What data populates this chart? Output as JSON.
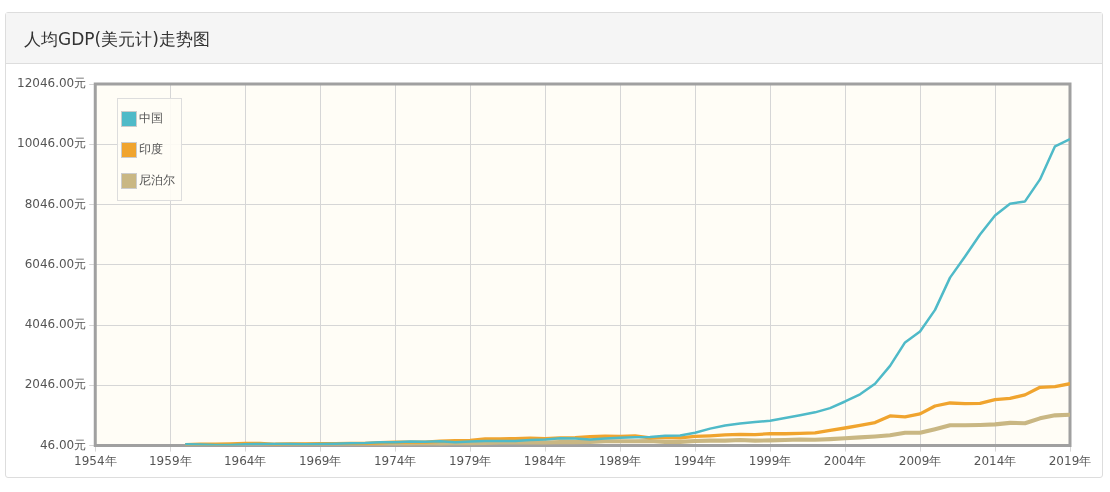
{
  "chart_data": {
    "type": "line",
    "title": "人均GDP(美元计)走势图",
    "x": [
      1960,
      1961,
      1962,
      1963,
      1964,
      1965,
      1966,
      1967,
      1968,
      1969,
      1970,
      1971,
      1972,
      1973,
      1974,
      1975,
      1976,
      1977,
      1978,
      1979,
      1980,
      1981,
      1982,
      1983,
      1984,
      1985,
      1986,
      1987,
      1988,
      1989,
      1990,
      1991,
      1992,
      1993,
      1994,
      1995,
      1996,
      1997,
      1998,
      1999,
      2000,
      2001,
      2002,
      2003,
      2004,
      2005,
      2006,
      2007,
      2008,
      2009,
      2010,
      2011,
      2012,
      2013,
      2014,
      2015,
      2016,
      2017,
      2018,
      2019
    ],
    "series": [
      {
        "name": "中国",
        "color": "#4fbac8",
        "values": [
          90,
          80,
          70,
          70,
          90,
          100,
          100,
          100,
          90,
          100,
          110,
          120,
          130,
          160,
          160,
          180,
          170,
          190,
          160,
          180,
          200,
          200,
          200,
          230,
          250,
          290,
          280,
          250,
          280,
          310,
          320,
          330,
          370,
          380,
          470,
          610,
          710,
          780,
          830,
          870,
          960,
          1050,
          1150,
          1290,
          1510,
          1750,
          2100,
          2690,
          3470,
          3830,
          4550,
          5620,
          6320,
          7050,
          7680,
          8070,
          8150,
          8880,
          9980,
          10220
        ]
      },
      {
        "name": "印度",
        "color": "#f0a42e",
        "values": [
          80,
          90,
          90,
          100,
          120,
          120,
          90,
          100,
          100,
          110,
          110,
          120,
          120,
          140,
          160,
          160,
          160,
          190,
          210,
          220,
          270,
          270,
          280,
          290,
          280,
          300,
          310,
          340,
          360,
          350,
          370,
          300,
          320,
          300,
          350,
          370,
          400,
          420,
          410,
          440,
          440,
          450,
          470,
          550,
          630,
          720,
          810,
          1030,
          1000,
          1100,
          1360,
          1460,
          1440,
          1450,
          1570,
          1610,
          1730,
          1980,
          2000,
          2100
        ]
      },
      {
        "name": "尼泊尔",
        "color": "#c9b783",
        "values": [
          50,
          50,
          60,
          60,
          60,
          70,
          70,
          70,
          70,
          70,
          70,
          80,
          70,
          90,
          100,
          100,
          120,
          100,
          120,
          120,
          130,
          150,
          150,
          150,
          150,
          160,
          160,
          170,
          190,
          190,
          190,
          200,
          170,
          170,
          200,
          210,
          210,
          230,
          210,
          220,
          230,
          250,
          240,
          260,
          290,
          320,
          350,
          390,
          470,
          470,
          590,
          720,
          720,
          730,
          750,
          800,
          790,
          950,
          1050,
          1070
        ]
      }
    ],
    "xlim": [
      1954,
      2019
    ],
    "xticks": [
      {
        "value": 1954,
        "label": "1954年"
      },
      {
        "value": 1959,
        "label": "1959年"
      },
      {
        "value": 1964,
        "label": "1964年"
      },
      {
        "value": 1969,
        "label": "1969年"
      },
      {
        "value": 1974,
        "label": "1974年"
      },
      {
        "value": 1979,
        "label": "1979年"
      },
      {
        "value": 1984,
        "label": "1984年"
      },
      {
        "value": 1989,
        "label": "1989年"
      },
      {
        "value": 1994,
        "label": "1994年"
      },
      {
        "value": 1999,
        "label": "1999年"
      },
      {
        "value": 2004,
        "label": "2004年"
      },
      {
        "value": 2009,
        "label": "2009年"
      },
      {
        "value": 2014,
        "label": "2014年"
      },
      {
        "value": 2019,
        "label": "2019年"
      }
    ],
    "ylim": [
      46,
      12046
    ],
    "yticks": [
      {
        "value": 46,
        "label": "46.00元"
      },
      {
        "value": 2046,
        "label": "2046.00元"
      },
      {
        "value": 4046,
        "label": "4046.00元"
      },
      {
        "value": 6046,
        "label": "6046.00元"
      },
      {
        "value": 8046,
        "label": "8046.00元"
      },
      {
        "value": 10046,
        "label": "10046.00元"
      },
      {
        "value": 12046,
        "label": "12046.00元"
      }
    ],
    "grid": true,
    "legend": "top left",
    "marker": "none",
    "line_style": "solid"
  }
}
